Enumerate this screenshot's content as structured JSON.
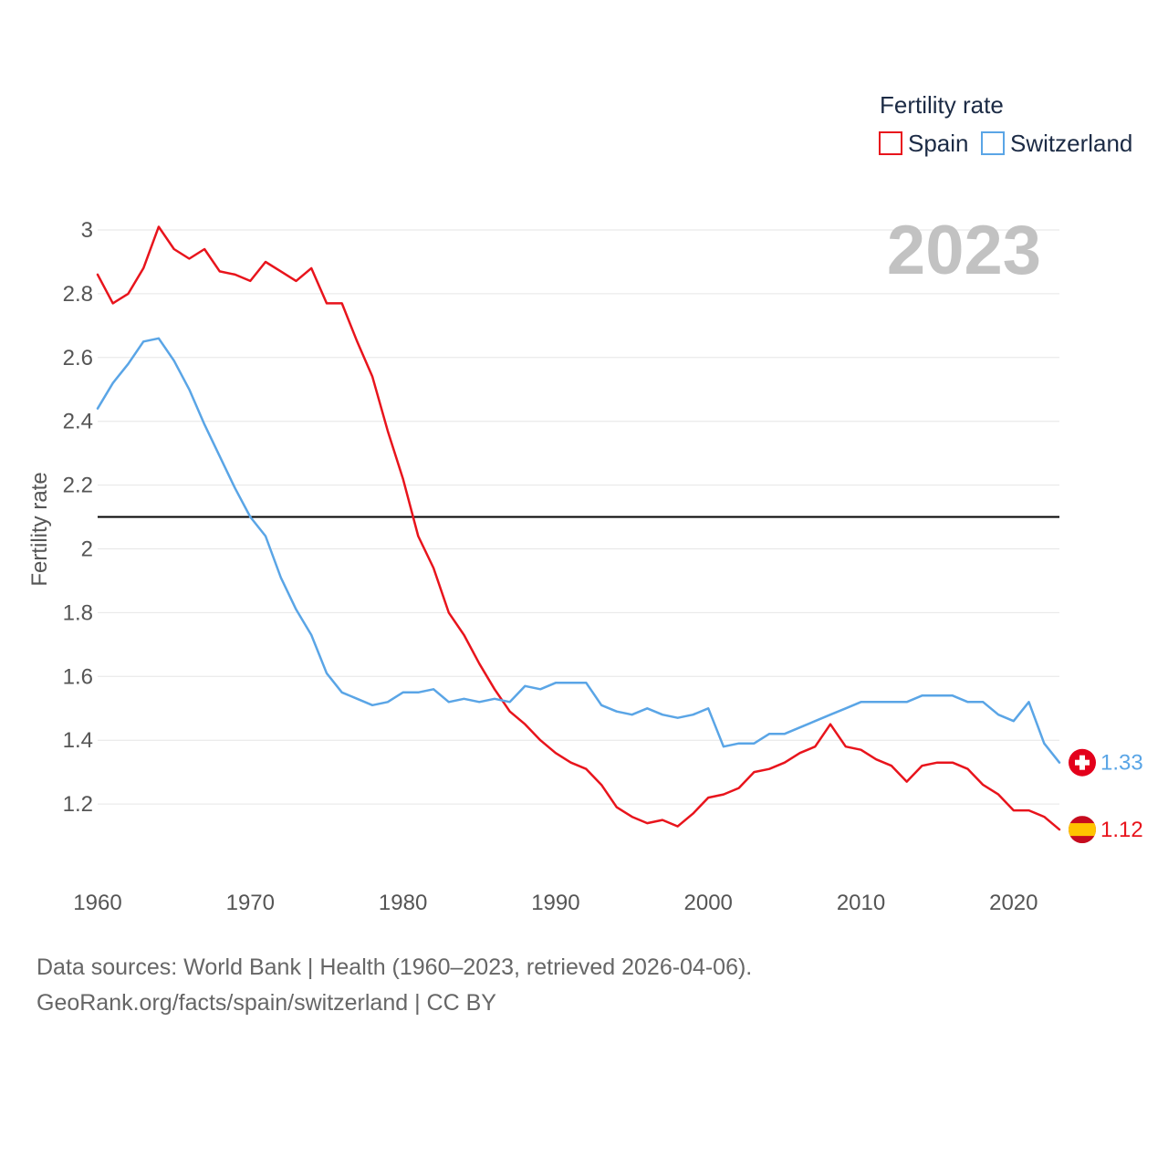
{
  "chart_data": {
    "type": "line",
    "title": "Fertility rate",
    "ylabel": "Fertility rate",
    "xlabel": "",
    "xlim": [
      1960,
      2023
    ],
    "ylim": [
      1.0,
      3.05
    ],
    "y_ticks": [
      1.2,
      1.4,
      1.6,
      1.8,
      2,
      2.2,
      2.4,
      2.6,
      2.8,
      3
    ],
    "y_tick_labels": [
      "1.2",
      "1.4",
      "1.6",
      "1.8",
      "2",
      "2.2",
      "2.4",
      "2.6",
      "2.8",
      "3"
    ],
    "x_ticks": [
      1960,
      1970,
      1980,
      1990,
      2000,
      2010,
      2020
    ],
    "x_tick_labels": [
      "1960",
      "1970",
      "1980",
      "1990",
      "2000",
      "2010",
      "2020"
    ],
    "reference_line": {
      "value": 2.1,
      "color": "#000000"
    },
    "year_label": "2023",
    "legend": {
      "title": "Fertility rate",
      "position": "top-right"
    },
    "x": [
      1960,
      1961,
      1962,
      1963,
      1964,
      1965,
      1966,
      1967,
      1968,
      1969,
      1970,
      1971,
      1972,
      1973,
      1974,
      1975,
      1976,
      1977,
      1978,
      1979,
      1980,
      1981,
      1982,
      1983,
      1984,
      1985,
      1986,
      1987,
      1988,
      1989,
      1990,
      1991,
      1992,
      1993,
      1994,
      1995,
      1996,
      1997,
      1998,
      1999,
      2000,
      2001,
      2002,
      2003,
      2004,
      2005,
      2006,
      2007,
      2008,
      2009,
      2010,
      2011,
      2012,
      2013,
      2014,
      2015,
      2016,
      2017,
      2018,
      2019,
      2020,
      2021,
      2022,
      2023
    ],
    "series": [
      {
        "name": "Spain",
        "color": "#e8141c",
        "flag": "spain-flag",
        "end_label": "1.12",
        "values": [
          2.86,
          2.77,
          2.8,
          2.88,
          3.01,
          2.94,
          2.91,
          2.94,
          2.87,
          2.86,
          2.84,
          2.9,
          2.87,
          2.84,
          2.88,
          2.77,
          2.77,
          2.65,
          2.54,
          2.37,
          2.22,
          2.04,
          1.94,
          1.8,
          1.73,
          1.64,
          1.56,
          1.49,
          1.45,
          1.4,
          1.36,
          1.33,
          1.31,
          1.26,
          1.19,
          1.16,
          1.14,
          1.15,
          1.13,
          1.17,
          1.22,
          1.23,
          1.25,
          1.3,
          1.31,
          1.33,
          1.36,
          1.38,
          1.45,
          1.38,
          1.37,
          1.34,
          1.32,
          1.27,
          1.32,
          1.33,
          1.33,
          1.31,
          1.26,
          1.23,
          1.18,
          1.18,
          1.16,
          1.12
        ]
      },
      {
        "name": "Switzerland",
        "color": "#5aa5e6",
        "flag": "switzerland-flag",
        "end_label": "1.33",
        "values": [
          2.44,
          2.52,
          2.58,
          2.65,
          2.66,
          2.59,
          2.5,
          2.39,
          2.29,
          2.19,
          2.1,
          2.04,
          1.91,
          1.81,
          1.73,
          1.61,
          1.55,
          1.53,
          1.51,
          1.52,
          1.55,
          1.55,
          1.56,
          1.52,
          1.53,
          1.52,
          1.53,
          1.52,
          1.57,
          1.56,
          1.58,
          1.58,
          1.58,
          1.51,
          1.49,
          1.48,
          1.5,
          1.48,
          1.47,
          1.48,
          1.5,
          1.38,
          1.39,
          1.39,
          1.42,
          1.42,
          1.44,
          1.46,
          1.48,
          1.5,
          1.52,
          1.52,
          1.52,
          1.52,
          1.54,
          1.54,
          1.54,
          1.52,
          1.52,
          1.48,
          1.46,
          1.52,
          1.39,
          1.33
        ]
      }
    ]
  },
  "footer": {
    "line1": "Data sources: World Bank | Health (1960–2023, retrieved 2026-04-06).",
    "line2": "GeoRank.org/facts/spain/switzerland | CC BY"
  }
}
